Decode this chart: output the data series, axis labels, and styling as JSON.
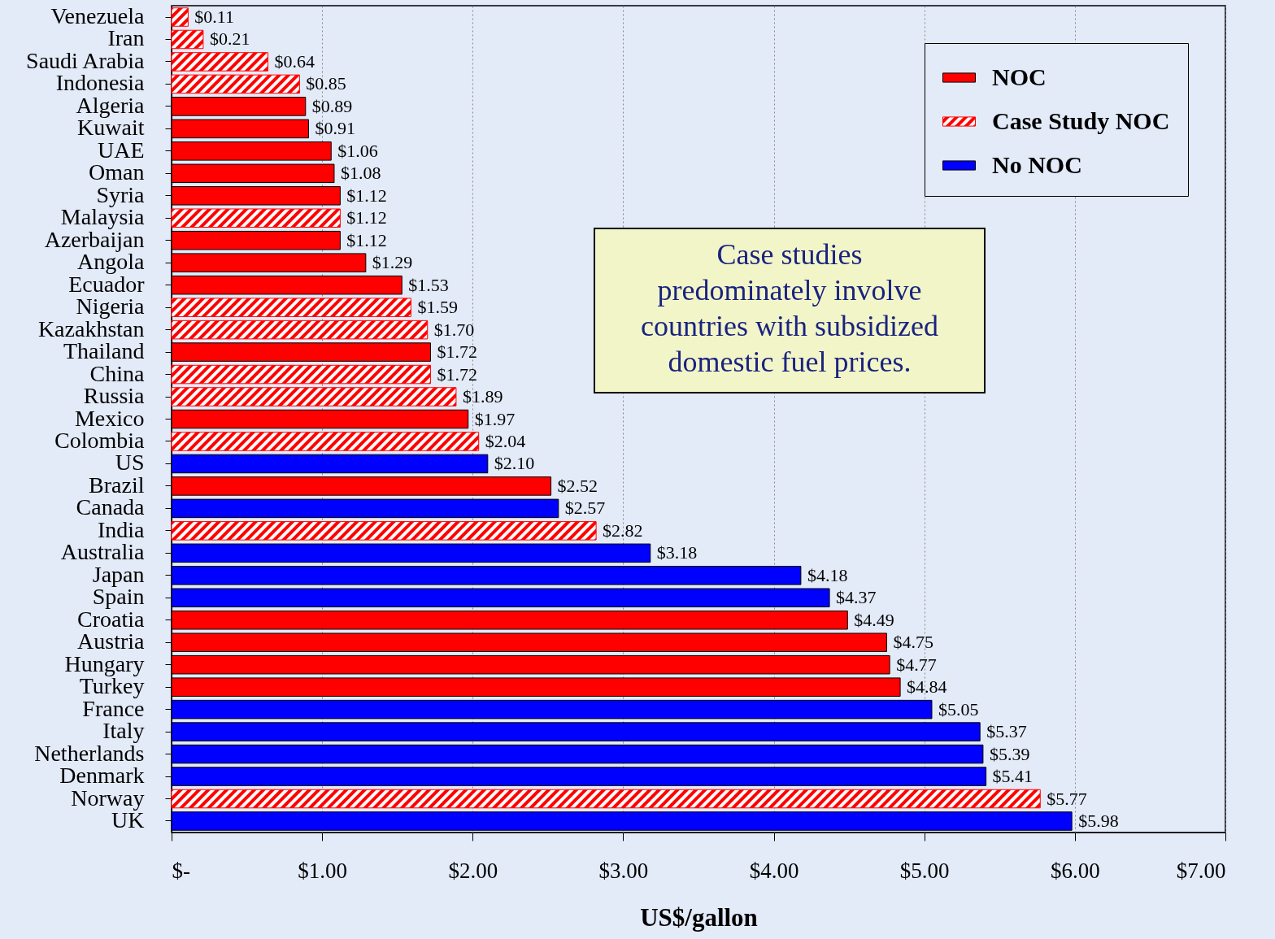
{
  "chart_data": {
    "type": "bar",
    "orientation": "horizontal",
    "categories": [
      "Venezuela",
      "Iran",
      "Saudi Arabia",
      "Indonesia",
      "Algeria",
      "Kuwait",
      "UAE",
      "Oman",
      "Syria",
      "Malaysia",
      "Azerbaijan",
      "Angola",
      "Ecuador",
      "Nigeria",
      "Kazakhstan",
      "Thailand",
      "China",
      "Russia",
      "Mexico",
      "Colombia",
      "US",
      "Brazil",
      "Canada",
      "India",
      "Australia",
      "Japan",
      "Spain",
      "Croatia",
      "Austria",
      "Hungary",
      "Turkey",
      "France",
      "Italy",
      "Netherlands",
      "Denmark",
      "Norway",
      "UK"
    ],
    "series": [
      {
        "name": "NOC",
        "color": "#ff0000",
        "values": [
          null,
          null,
          null,
          null,
          0.89,
          0.91,
          1.06,
          1.08,
          1.12,
          null,
          1.12,
          1.29,
          1.53,
          null,
          null,
          1.72,
          null,
          null,
          1.97,
          null,
          null,
          2.52,
          null,
          null,
          null,
          null,
          null,
          4.49,
          4.75,
          4.77,
          4.84,
          null,
          null,
          null,
          null,
          null,
          null
        ],
        "value_labels": [
          null,
          null,
          null,
          null,
          "$0.89",
          "$0.91",
          "$1.06",
          "$1.08",
          "$1.12",
          null,
          "$1.12",
          "$1.29",
          "$1.53",
          null,
          null,
          "$1.72",
          null,
          null,
          "$1.97",
          null,
          null,
          "$2.52",
          null,
          null,
          null,
          null,
          null,
          "$4.49",
          "$4.75",
          "$4.77",
          "$4.84",
          null,
          null,
          null,
          null,
          null,
          null
        ]
      },
      {
        "name": "Case Study NOC",
        "color": "#ff0000",
        "values": [
          0.11,
          0.21,
          0.64,
          0.85,
          null,
          null,
          null,
          null,
          null,
          1.12,
          null,
          null,
          null,
          1.59,
          1.7,
          null,
          1.72,
          1.89,
          null,
          2.04,
          null,
          null,
          null,
          2.82,
          null,
          null,
          null,
          null,
          null,
          null,
          null,
          null,
          null,
          null,
          null,
          5.77,
          null
        ],
        "value_labels": [
          "$0.11",
          "$0.21",
          "$0.64",
          "$0.85",
          null,
          null,
          null,
          null,
          null,
          "$1.12",
          null,
          null,
          null,
          "$1.59",
          "$1.70",
          null,
          "$1.72",
          "$1.89",
          null,
          "$2.04",
          null,
          null,
          null,
          "$2.82",
          null,
          null,
          null,
          null,
          null,
          null,
          null,
          null,
          null,
          null,
          null,
          "$5.77",
          null
        ]
      },
      {
        "name": "No NOC",
        "color": "#0000ff",
        "values": [
          null,
          null,
          null,
          null,
          null,
          null,
          null,
          null,
          null,
          null,
          null,
          null,
          null,
          null,
          null,
          null,
          null,
          null,
          null,
          null,
          2.1,
          null,
          2.57,
          null,
          3.18,
          4.18,
          4.37,
          null,
          null,
          null,
          null,
          5.05,
          5.37,
          5.39,
          5.41,
          null,
          5.98
        ],
        "value_labels": [
          null,
          null,
          null,
          null,
          null,
          null,
          null,
          null,
          null,
          null,
          null,
          null,
          null,
          null,
          null,
          null,
          null,
          null,
          null,
          null,
          "$2.10",
          null,
          "$2.57",
          null,
          "$3.18",
          "$4.18",
          "$4.37",
          null,
          null,
          null,
          null,
          "$5.05",
          "$5.37",
          "$5.39",
          "$5.41",
          null,
          "$5.98"
        ]
      }
    ],
    "xlabel": "US$/gallon",
    "xlim": [
      0,
      7
    ],
    "xticks": [
      {
        "value": 0,
        "label": "$-"
      },
      {
        "value": 1,
        "label": "$1.00"
      },
      {
        "value": 2,
        "label": "$2.00"
      },
      {
        "value": 3,
        "label": "$3.00"
      },
      {
        "value": 4,
        "label": "$4.00"
      },
      {
        "value": 5,
        "label": "$5.00"
      },
      {
        "value": 6,
        "label": "$6.00"
      },
      {
        "value": 7,
        "label": "$7.00"
      }
    ],
    "grid": "x",
    "legend": "top right",
    "annotations": [
      "Case studies predominately involve countries with subsidized domestic fuel prices."
    ]
  }
}
